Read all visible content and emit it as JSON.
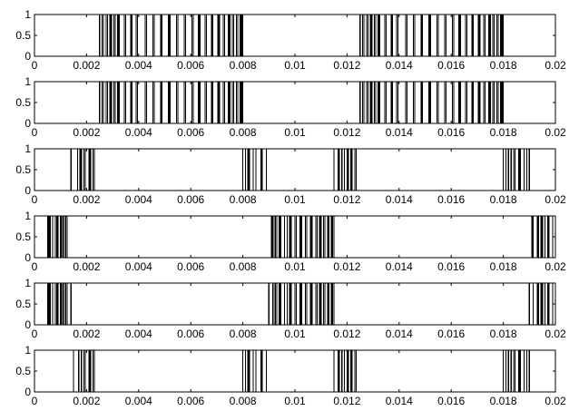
{
  "chart_data": [
    {
      "type": "line",
      "xlim": [
        0,
        0.02
      ],
      "ylim": [
        0,
        1
      ],
      "x_ticks": [
        "0",
        "0.002",
        "0.004",
        "0.006",
        "0.008",
        "0.01",
        "0.012",
        "0.014",
        "0.016",
        "0.018",
        "0.02"
      ],
      "y_ticks": [
        "0",
        "0.5",
        "1"
      ],
      "pulses": [
        [
          0.0025,
          0.0026
        ],
        [
          0.00265,
          0.00275
        ],
        [
          0.0028,
          0.0029
        ],
        [
          0.00295,
          0.00305
        ],
        [
          0.0031,
          0.0032
        ],
        [
          0.00325,
          0.00345
        ],
        [
          0.0035,
          0.0037
        ],
        [
          0.00375,
          0.0039
        ],
        [
          0.00395,
          0.00425
        ],
        [
          0.0043,
          0.00455
        ],
        [
          0.0046,
          0.00485
        ],
        [
          0.0049,
          0.00515
        ],
        [
          0.0052,
          0.00545
        ],
        [
          0.0055,
          0.00575
        ],
        [
          0.0058,
          0.00605
        ],
        [
          0.0061,
          0.0063
        ],
        [
          0.00635,
          0.00655
        ],
        [
          0.0066,
          0.0068
        ],
        [
          0.00685,
          0.00705
        ],
        [
          0.0071,
          0.00725
        ],
        [
          0.0073,
          0.00745
        ],
        [
          0.0075,
          0.0076
        ],
        [
          0.00765,
          0.00775
        ],
        [
          0.0078,
          0.0079
        ],
        [
          0.00795,
          0.008
        ],
        [
          0.0125,
          0.0126
        ],
        [
          0.01265,
          0.01275
        ],
        [
          0.0128,
          0.0129
        ],
        [
          0.01295,
          0.01305
        ],
        [
          0.0131,
          0.0132
        ],
        [
          0.01325,
          0.01345
        ],
        [
          0.0135,
          0.0137
        ],
        [
          0.01375,
          0.0139
        ],
        [
          0.01395,
          0.01425
        ],
        [
          0.0143,
          0.01455
        ],
        [
          0.0146,
          0.01485
        ],
        [
          0.0149,
          0.01515
        ],
        [
          0.0152,
          0.01545
        ],
        [
          0.0155,
          0.01575
        ],
        [
          0.0158,
          0.01605
        ],
        [
          0.0161,
          0.0163
        ],
        [
          0.01635,
          0.01655
        ],
        [
          0.0166,
          0.0168
        ],
        [
          0.01685,
          0.01705
        ],
        [
          0.0171,
          0.01725
        ],
        [
          0.0173,
          0.01745
        ],
        [
          0.0175,
          0.0176
        ],
        [
          0.01765,
          0.01775
        ],
        [
          0.0178,
          0.0179
        ],
        [
          0.01795,
          0.018
        ]
      ]
    },
    {
      "type": "line",
      "xlim": [
        0,
        0.02
      ],
      "ylim": [
        0,
        1
      ],
      "x_ticks": [
        "0",
        "0.002",
        "0.004",
        "0.006",
        "0.008",
        "0.01",
        "0.012",
        "0.014",
        "0.016",
        "0.018",
        "0.02"
      ],
      "y_ticks": [
        "0",
        "0.5",
        "1"
      ],
      "pulses": [
        [
          0,
          0.0025
        ],
        [
          0.0026,
          0.00265
        ],
        [
          0.00275,
          0.0028
        ],
        [
          0.0029,
          0.00295
        ],
        [
          0.00305,
          0.0031
        ],
        [
          0.0032,
          0.00325
        ],
        [
          0.00345,
          0.0035
        ],
        [
          0.0037,
          0.00375
        ],
        [
          0.0039,
          0.00395
        ],
        [
          0.00425,
          0.0043
        ],
        [
          0.00455,
          0.0046
        ],
        [
          0.00485,
          0.0049
        ],
        [
          0.00515,
          0.0052
        ],
        [
          0.00545,
          0.0055
        ],
        [
          0.00575,
          0.0058
        ],
        [
          0.00605,
          0.0061
        ],
        [
          0.0063,
          0.00635
        ],
        [
          0.00655,
          0.0066
        ],
        [
          0.0068,
          0.00685
        ],
        [
          0.00705,
          0.0071
        ],
        [
          0.00725,
          0.0073
        ],
        [
          0.00745,
          0.0075
        ],
        [
          0.0076,
          0.00765
        ],
        [
          0.00775,
          0.0078
        ],
        [
          0.0079,
          0.00795
        ],
        [
          0.008,
          0.0125
        ],
        [
          0.0126,
          0.01265
        ],
        [
          0.01275,
          0.0128
        ],
        [
          0.0129,
          0.01295
        ],
        [
          0.01305,
          0.0131
        ],
        [
          0.0132,
          0.01325
        ],
        [
          0.01345,
          0.0135
        ],
        [
          0.0137,
          0.01375
        ],
        [
          0.0139,
          0.01395
        ],
        [
          0.01425,
          0.0143
        ],
        [
          0.01455,
          0.0146
        ],
        [
          0.01485,
          0.0149
        ],
        [
          0.01515,
          0.0152
        ],
        [
          0.01545,
          0.0155
        ],
        [
          0.01575,
          0.0158
        ],
        [
          0.01605,
          0.0161
        ],
        [
          0.0163,
          0.01635
        ],
        [
          0.01655,
          0.0166
        ],
        [
          0.0168,
          0.01685
        ],
        [
          0.01705,
          0.0171
        ],
        [
          0.01725,
          0.0173
        ],
        [
          0.01745,
          0.0175
        ],
        [
          0.0176,
          0.01765
        ],
        [
          0.01775,
          0.0178
        ],
        [
          0.0179,
          0.01795
        ],
        [
          0.018,
          0.02
        ]
      ]
    },
    {
      "type": "line",
      "xlim": [
        0,
        0.02
      ],
      "ylim": [
        0,
        1
      ],
      "x_ticks": [
        "0",
        "0.002",
        "0.004",
        "0.006",
        "0.008",
        "0.01",
        "0.012",
        "0.014",
        "0.016",
        "0.018",
        "0.02"
      ],
      "y_ticks": [
        "0",
        "0.5",
        "1"
      ],
      "pulses": [
        [
          0.0014,
          0.00165
        ],
        [
          0.00175,
          0.0018
        ],
        [
          0.0019,
          0.00195
        ],
        [
          0.0021,
          0.00215
        ],
        [
          0.00225,
          0.0023
        ],
        [
          0.008,
          0.0081
        ],
        [
          0.0082,
          0.00825
        ],
        [
          0.0084,
          0.0085
        ],
        [
          0.0087,
          0.00875
        ],
        [
          0.0089,
          0.0115
        ],
        [
          0.01165,
          0.0117
        ],
        [
          0.0118,
          0.0119
        ],
        [
          0.012,
          0.01205
        ],
        [
          0.01215,
          0.0122
        ],
        [
          0.0123,
          0.01235
        ],
        [
          0.018,
          0.0181
        ],
        [
          0.0182,
          0.0183
        ],
        [
          0.0184,
          0.01845
        ],
        [
          0.0186,
          0.01865
        ],
        [
          0.0188,
          0.0189
        ],
        [
          0.019,
          0.02
        ]
      ]
    },
    {
      "type": "line",
      "xlim": [
        0,
        0.02
      ],
      "ylim": [
        0,
        1
      ],
      "x_ticks": [
        "0",
        "0.002",
        "0.004",
        "0.006",
        "0.008",
        "0.01",
        "0.012",
        "0.014",
        "0.016",
        "0.018",
        "0.02"
      ],
      "y_ticks": [
        "0",
        "0.5",
        "1"
      ],
      "pulses": [
        [
          0,
          0.0005
        ],
        [
          0.00055,
          0.0006
        ],
        [
          0.0007,
          0.0008
        ],
        [
          0.00085,
          0.0009
        ],
        [
          0.001,
          0.00105
        ],
        [
          0.0011,
          0.00115
        ],
        [
          0.0012,
          0.00125
        ],
        [
          0.0009,
          0.0009
        ],
        [
          0.0091,
          0.00915
        ],
        [
          0.0092,
          0.00925
        ],
        [
          0.0093,
          0.0094
        ],
        [
          0.00945,
          0.0096
        ],
        [
          0.0097,
          0.0098
        ],
        [
          0.00985,
          0.01
        ],
        [
          0.01005,
          0.0102
        ],
        [
          0.01025,
          0.0104
        ],
        [
          0.01045,
          0.0106
        ],
        [
          0.01065,
          0.0108
        ],
        [
          0.01085,
          0.01095
        ],
        [
          0.011,
          0.0111
        ],
        [
          0.01115,
          0.01125
        ],
        [
          0.0113,
          0.0114
        ],
        [
          0.01145,
          0.0115
        ],
        [
          0.0191,
          0.01915
        ],
        [
          0.0193,
          0.01935
        ],
        [
          0.01945,
          0.0195
        ],
        [
          0.0196,
          0.0197
        ],
        [
          0.01975,
          0.0199
        ]
      ]
    },
    {
      "type": "line",
      "xlim": [
        0,
        0.02
      ],
      "ylim": [
        0,
        1
      ],
      "x_ticks": [
        "0",
        "0.002",
        "0.004",
        "0.006",
        "0.008",
        "0.01",
        "0.012",
        "0.014",
        "0.016",
        "0.018",
        "0.02"
      ],
      "y_ticks": [
        "0",
        "0.5",
        "1"
      ],
      "pulses": [
        [
          0.0005,
          0.00055
        ],
        [
          0.0006,
          0.0007
        ],
        [
          0.0008,
          0.00085
        ],
        [
          0.0009,
          0.001
        ],
        [
          0.00105,
          0.0011
        ],
        [
          0.00115,
          0.0012
        ],
        [
          0.00125,
          0.0014
        ],
        [
          0.0014,
          0.009
        ],
        [
          0.00915,
          0.0092
        ],
        [
          0.00925,
          0.0093
        ],
        [
          0.0094,
          0.00945
        ],
        [
          0.0096,
          0.0097
        ],
        [
          0.0098,
          0.00985
        ],
        [
          0.01,
          0.01005
        ],
        [
          0.0102,
          0.01025
        ],
        [
          0.0104,
          0.01045
        ],
        [
          0.0106,
          0.01065
        ],
        [
          0.0108,
          0.01085
        ],
        [
          0.01095,
          0.011
        ],
        [
          0.0111,
          0.01115
        ],
        [
          0.01125,
          0.0113
        ],
        [
          0.0114,
          0.01145
        ],
        [
          0.0115,
          0.019
        ],
        [
          0.01915,
          0.0193
        ],
        [
          0.01935,
          0.01945
        ],
        [
          0.0195,
          0.0196
        ],
        [
          0.0197,
          0.01975
        ],
        [
          0.0199,
          0.02
        ]
      ]
    },
    {
      "type": "line",
      "xlim": [
        0,
        0.02
      ],
      "ylim": [
        0,
        1
      ],
      "x_ticks": [
        "0",
        "0.002",
        "0.004",
        "0.006",
        "0.008",
        "0.01",
        "0.012",
        "0.014",
        "0.016",
        "0.018",
        "0.02"
      ],
      "y_ticks": [
        "0",
        "0.5",
        "1"
      ],
      "pulses": [
        [
          0.0015,
          0.0017
        ],
        [
          0.0018,
          0.0019
        ],
        [
          0.00195,
          0.0021
        ],
        [
          0.00215,
          0.00225
        ],
        [
          0.0023,
          0.008
        ],
        [
          0.0081,
          0.0082
        ],
        [
          0.00825,
          0.0084
        ],
        [
          0.0085,
          0.0087
        ],
        [
          0.00875,
          0.0089
        ],
        [
          0.0115,
          0.01165
        ],
        [
          0.0117,
          0.0118
        ],
        [
          0.0119,
          0.012
        ],
        [
          0.01205,
          0.01215
        ],
        [
          0.0122,
          0.0123
        ],
        [
          0.01235,
          0.018
        ],
        [
          0.0181,
          0.0182
        ],
        [
          0.0183,
          0.0184
        ],
        [
          0.01845,
          0.0186
        ],
        [
          0.01865,
          0.0188
        ],
        [
          0.0189,
          0.019
        ]
      ]
    }
  ]
}
